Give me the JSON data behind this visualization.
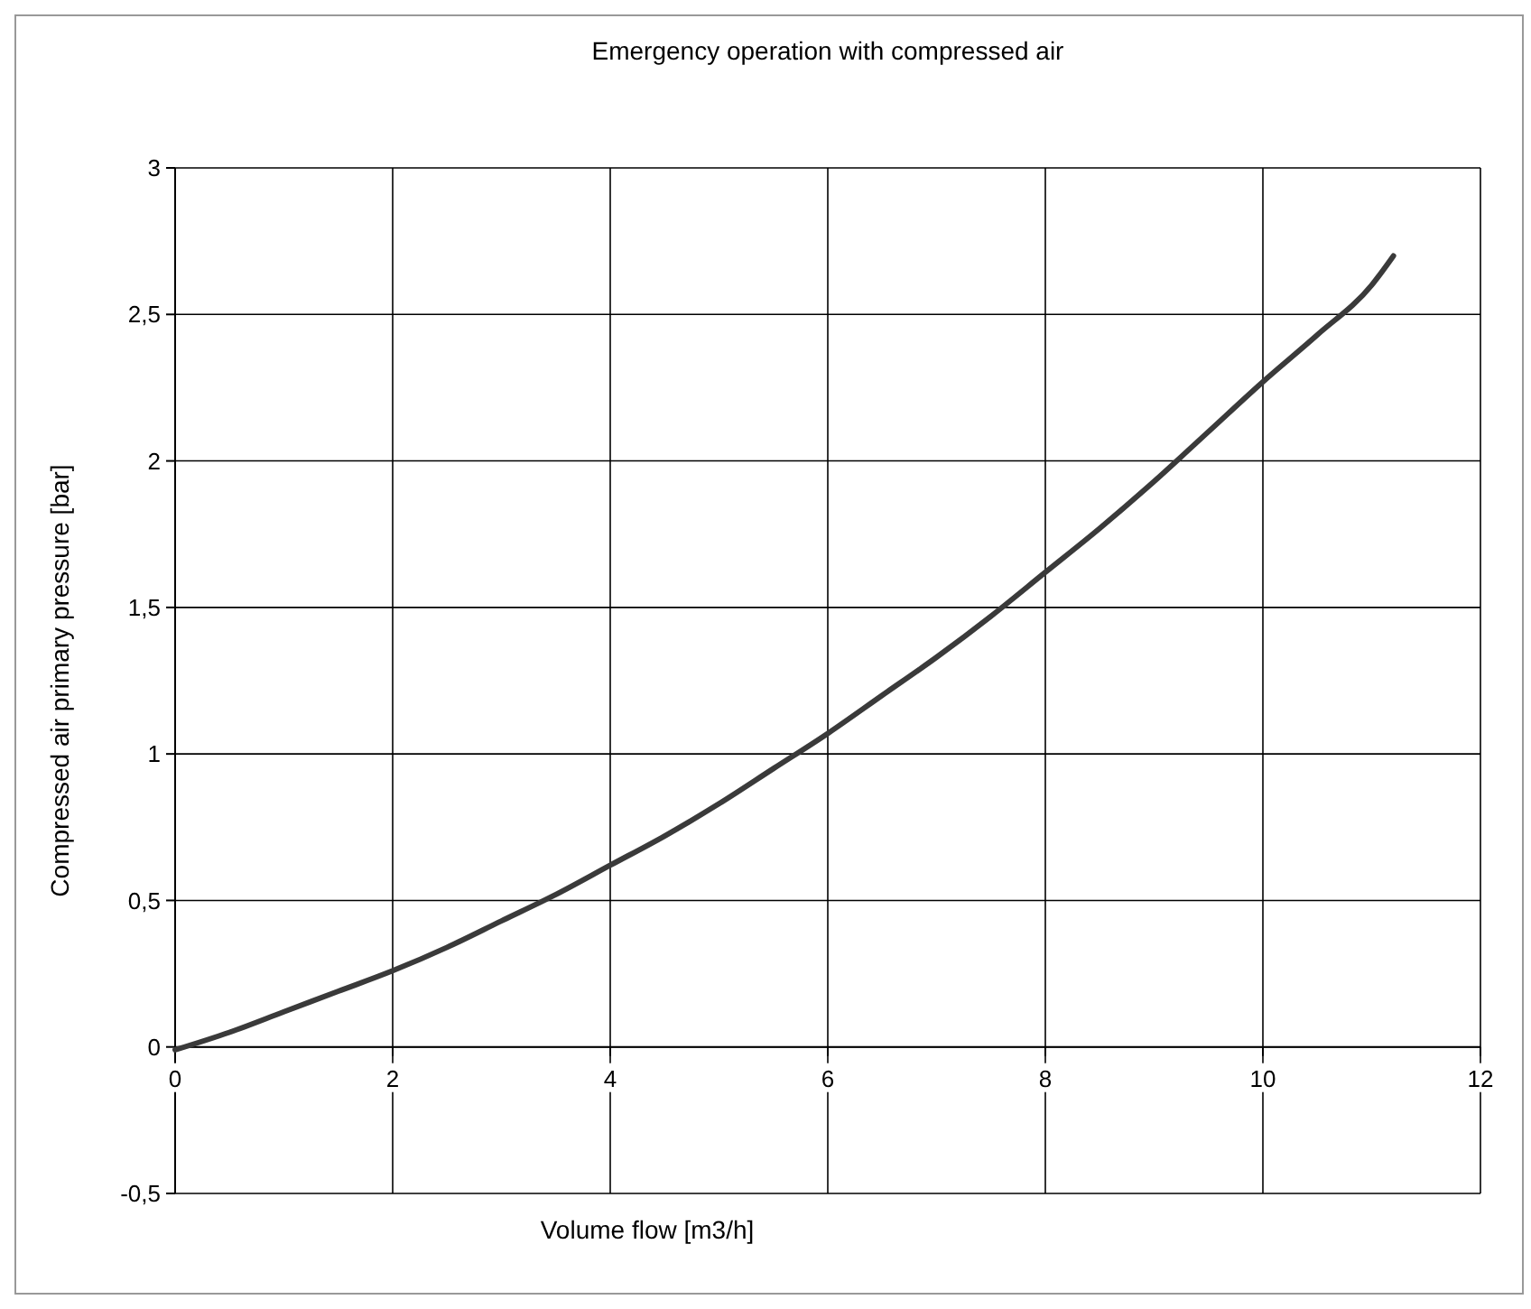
{
  "chart_data": {
    "type": "line",
    "title": "Emergency operation with compressed air",
    "xlabel": "Volume flow [m3/h]",
    "ylabel": "Compressed air primary pressure [bar]",
    "x": [
      0,
      0.5,
      1,
      1.5,
      2,
      2.5,
      3,
      3.5,
      4,
      4.5,
      5,
      5.5,
      6,
      6.5,
      7,
      7.5,
      8,
      8.5,
      9,
      9.5,
      10,
      10.5,
      11,
      11.2
    ],
    "series": [
      {
        "color": "#3a3a3a",
        "values": [
          -0.01,
          0.05,
          0.12,
          0.19,
          0.26,
          0.34,
          0.43,
          0.52,
          0.62,
          0.72,
          0.83,
          0.95,
          1.07,
          1.2,
          1.33,
          1.47,
          1.62,
          1.77,
          1.93,
          2.1,
          2.27,
          2.43,
          2.6,
          2.7
        ]
      }
    ],
    "xlim": [
      0,
      12
    ],
    "xticks": [
      0,
      2,
      4,
      6,
      8,
      10,
      12
    ],
    "ylim": [
      -0.5,
      3
    ],
    "yticks": [
      {
        "value": -0.5,
        "label": "-0,5"
      },
      0,
      {
        "value": 0.5,
        "label": "0,5"
      },
      1,
      {
        "value": 1.5,
        "label": "1,5"
      },
      2,
      {
        "value": 2.5,
        "label": "2,5"
      },
      3
    ],
    "grid": true,
    "marker": "none",
    "line_style": "solid"
  }
}
